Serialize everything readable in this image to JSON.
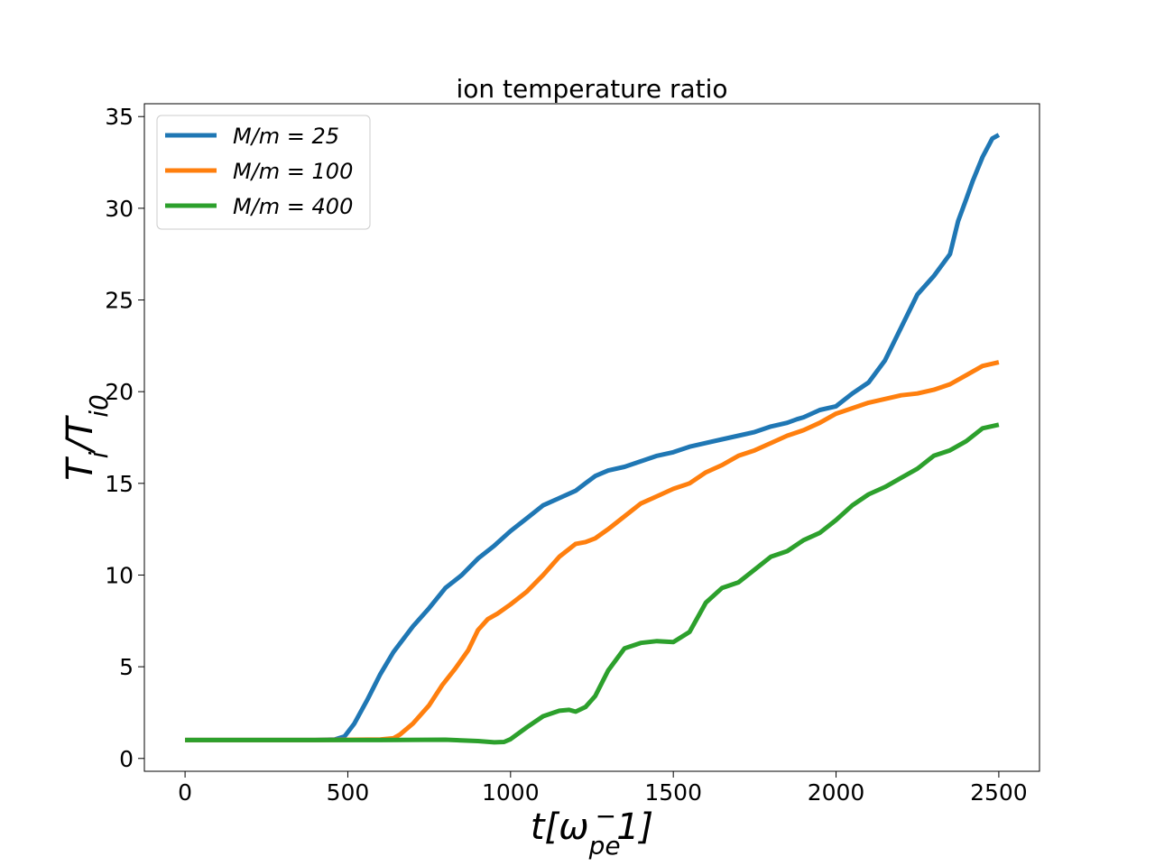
{
  "chart_data": {
    "type": "line",
    "title": "ion temperature ratio",
    "xlabel": "t[ω_pe^-1]",
    "ylabel": "T_i/T_i0",
    "xlim": [
      -125,
      2625
    ],
    "ylim": [
      -0.7,
      35.7
    ],
    "xticks": [
      0,
      500,
      1000,
      1500,
      2000,
      2500
    ],
    "yticks": [
      0,
      5,
      10,
      15,
      20,
      25,
      30,
      35
    ],
    "grid": false,
    "legend_position": "top-left",
    "series": [
      {
        "name": "M/m = 25",
        "color": "#1f77b4",
        "x": [
          0,
          100,
          200,
          300,
          400,
          460,
          490,
          520,
          560,
          600,
          640,
          700,
          750,
          800,
          850,
          900,
          950,
          1000,
          1050,
          1100,
          1150,
          1200,
          1230,
          1260,
          1300,
          1350,
          1400,
          1450,
          1500,
          1550,
          1600,
          1650,
          1700,
          1750,
          1800,
          1850,
          1880,
          1900,
          1950,
          2000,
          2050,
          2100,
          2150,
          2200,
          2250,
          2300,
          2350,
          2375,
          2400,
          2420,
          2450,
          2480,
          2500
        ],
        "values": [
          1.0,
          1.0,
          1.0,
          1.0,
          1.0,
          1.03,
          1.2,
          1.9,
          3.2,
          4.6,
          5.8,
          7.2,
          8.2,
          9.3,
          10.0,
          10.9,
          11.6,
          12.4,
          13.1,
          13.8,
          14.2,
          14.6,
          15.0,
          15.4,
          15.7,
          15.9,
          16.2,
          16.5,
          16.7,
          17.0,
          17.2,
          17.4,
          17.6,
          17.8,
          18.1,
          18.3,
          18.5,
          18.6,
          19.0,
          19.2,
          19.9,
          20.5,
          21.7,
          23.5,
          25.3,
          26.3,
          27.5,
          29.3,
          30.5,
          31.5,
          32.8,
          33.8,
          34.0
        ]
      },
      {
        "name": "M/m = 100",
        "color": "#ff7f0e",
        "x": [
          0,
          200,
          400,
          600,
          640,
          660,
          700,
          750,
          790,
          830,
          870,
          900,
          930,
          960,
          1000,
          1050,
          1100,
          1150,
          1200,
          1230,
          1260,
          1300,
          1350,
          1400,
          1450,
          1500,
          1550,
          1600,
          1650,
          1700,
          1750,
          1800,
          1850,
          1900,
          1950,
          2000,
          2050,
          2100,
          2150,
          2200,
          2250,
          2300,
          2350,
          2400,
          2450,
          2500
        ],
        "values": [
          1.0,
          1.0,
          1.0,
          1.03,
          1.1,
          1.3,
          1.9,
          2.9,
          4.0,
          4.9,
          5.9,
          7.0,
          7.6,
          7.9,
          8.4,
          9.1,
          10.0,
          11.0,
          11.7,
          11.8,
          12.0,
          12.5,
          13.2,
          13.9,
          14.3,
          14.7,
          15.0,
          15.6,
          16.0,
          16.5,
          16.8,
          17.2,
          17.6,
          17.9,
          18.3,
          18.8,
          19.1,
          19.4,
          19.6,
          19.8,
          19.9,
          20.1,
          20.4,
          20.9,
          21.4,
          21.6
        ]
      },
      {
        "name": "M/m = 400",
        "color": "#2ca02c",
        "x": [
          0,
          200,
          400,
          600,
          800,
          900,
          950,
          980,
          1000,
          1050,
          1100,
          1150,
          1180,
          1200,
          1230,
          1260,
          1300,
          1350,
          1400,
          1450,
          1500,
          1550,
          1600,
          1650,
          1700,
          1750,
          1800,
          1850,
          1900,
          1950,
          2000,
          2050,
          2100,
          2150,
          2200,
          2250,
          2300,
          2350,
          2400,
          2450,
          2500
        ],
        "values": [
          1.0,
          1.0,
          1.0,
          1.0,
          1.02,
          0.95,
          0.88,
          0.9,
          1.05,
          1.7,
          2.3,
          2.6,
          2.65,
          2.55,
          2.8,
          3.4,
          4.8,
          6.0,
          6.3,
          6.4,
          6.35,
          6.9,
          8.5,
          9.3,
          9.6,
          10.3,
          11.0,
          11.3,
          11.9,
          12.3,
          13.0,
          13.8,
          14.4,
          14.8,
          15.3,
          15.8,
          16.5,
          16.8,
          17.3,
          18.0,
          18.2
        ]
      }
    ]
  }
}
